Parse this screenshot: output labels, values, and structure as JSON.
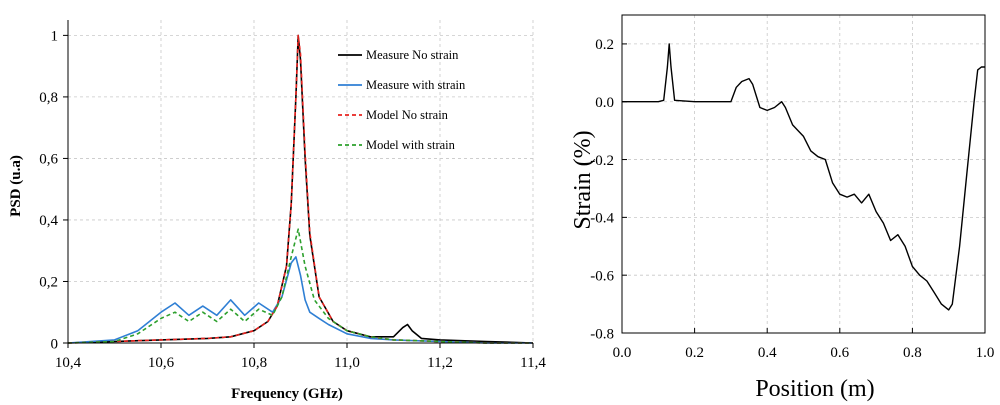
{
  "chart_data": [
    {
      "type": "line",
      "title": "",
      "xlabel": "Frequency (GHz)",
      "ylabel": "PSD (u.a)",
      "xlim": [
        10.4,
        11.4
      ],
      "ylim": [
        0,
        1.05
      ],
      "x_ticks": [
        "10,4",
        "10,6",
        "10,8",
        "11,0",
        "11,2",
        "11,4"
      ],
      "y_ticks": [
        "0",
        "0,2",
        "0,4",
        "0,6",
        "0,8",
        "1"
      ],
      "x_tick_values": [
        10.4,
        10.6,
        10.8,
        11.0,
        11.2,
        11.4
      ],
      "y_tick_values": [
        0,
        0.2,
        0.4,
        0.6,
        0.8,
        1.0
      ],
      "grid": true,
      "legend": "top-right",
      "series": [
        {
          "name": "Measure No strain",
          "color": "#000000",
          "style": "solid",
          "x": [
            10.4,
            10.5,
            10.6,
            10.7,
            10.75,
            10.8,
            10.83,
            10.85,
            10.87,
            10.88,
            10.89,
            10.895,
            10.9,
            10.91,
            10.92,
            10.94,
            10.97,
            11.0,
            11.05,
            11.1,
            11.12,
            11.13,
            11.14,
            11.16,
            11.2,
            11.3,
            11.4
          ],
          "y": [
            0.0,
            0.005,
            0.01,
            0.015,
            0.02,
            0.04,
            0.07,
            0.12,
            0.25,
            0.45,
            0.8,
            1.0,
            0.92,
            0.6,
            0.35,
            0.15,
            0.07,
            0.04,
            0.02,
            0.02,
            0.05,
            0.06,
            0.04,
            0.015,
            0.01,
            0.005,
            0.0
          ]
        },
        {
          "name": "Measure with strain",
          "color": "#2f7fd4",
          "style": "solid",
          "x": [
            10.4,
            10.5,
            10.55,
            10.6,
            10.63,
            10.66,
            10.69,
            10.72,
            10.75,
            10.78,
            10.81,
            10.84,
            10.86,
            10.88,
            10.89,
            10.9,
            10.91,
            10.92,
            10.94,
            10.96,
            11.0,
            11.05,
            11.1,
            11.2,
            11.3,
            11.4
          ],
          "y": [
            0.0,
            0.01,
            0.04,
            0.1,
            0.13,
            0.09,
            0.12,
            0.09,
            0.14,
            0.09,
            0.13,
            0.1,
            0.15,
            0.26,
            0.28,
            0.22,
            0.14,
            0.1,
            0.08,
            0.06,
            0.03,
            0.015,
            0.01,
            0.005,
            0.0,
            0.0
          ]
        },
        {
          "name": "Model No strain",
          "color": "#e8231f",
          "style": "dashed",
          "x": [
            10.4,
            10.5,
            10.6,
            10.7,
            10.75,
            10.8,
            10.83,
            10.85,
            10.87,
            10.88,
            10.89,
            10.895,
            10.9,
            10.91,
            10.92,
            10.94,
            10.97,
            11.0,
            11.05,
            11.1,
            11.2,
            11.3,
            11.4
          ],
          "y": [
            0.0,
            0.005,
            0.01,
            0.015,
            0.02,
            0.04,
            0.07,
            0.12,
            0.25,
            0.45,
            0.8,
            1.0,
            0.94,
            0.62,
            0.36,
            0.15,
            0.07,
            0.04,
            0.02,
            0.01,
            0.005,
            0.0,
            0.0
          ]
        },
        {
          "name": "Model with strain",
          "color": "#2da02d",
          "style": "dashed",
          "x": [
            10.4,
            10.5,
            10.55,
            10.6,
            10.63,
            10.66,
            10.69,
            10.72,
            10.75,
            10.78,
            10.81,
            10.84,
            10.86,
            10.88,
            10.895,
            10.91,
            10.93,
            10.96,
            11.0,
            11.05,
            11.1,
            11.2,
            11.3,
            11.4
          ],
          "y": [
            0.0,
            0.005,
            0.03,
            0.08,
            0.1,
            0.07,
            0.1,
            0.07,
            0.11,
            0.07,
            0.11,
            0.09,
            0.15,
            0.28,
            0.37,
            0.25,
            0.14,
            0.08,
            0.04,
            0.02,
            0.01,
            0.005,
            0.0,
            0.0
          ]
        }
      ]
    },
    {
      "type": "line",
      "title": "",
      "xlabel": "Position (m)",
      "ylabel": "Strain (%)",
      "xlim": [
        0.0,
        1.0
      ],
      "ylim": [
        -0.8,
        0.3
      ],
      "x_ticks": [
        "0.0",
        "0.2",
        "0.4",
        "0.6",
        "0.8",
        "1.0"
      ],
      "y_ticks": [
        "-0.8",
        "-0.6",
        "-0.4",
        "-0.2",
        "0.0",
        "0.2"
      ],
      "x_tick_values": [
        0.0,
        0.2,
        0.4,
        0.6,
        0.8,
        1.0
      ],
      "y_tick_values": [
        -0.8,
        -0.6,
        -0.4,
        -0.2,
        0.0,
        0.2
      ],
      "grid": true,
      "legend": "none",
      "series": [
        {
          "color": "#000000",
          "style": "solid",
          "x": [
            0.0,
            0.1,
            0.115,
            0.125,
            0.13,
            0.135,
            0.145,
            0.2,
            0.3,
            0.315,
            0.33,
            0.35,
            0.36,
            0.38,
            0.4,
            0.42,
            0.44,
            0.45,
            0.47,
            0.5,
            0.52,
            0.54,
            0.56,
            0.58,
            0.6,
            0.62,
            0.64,
            0.66,
            0.68,
            0.7,
            0.72,
            0.74,
            0.76,
            0.78,
            0.8,
            0.82,
            0.84,
            0.86,
            0.88,
            0.9,
            0.91,
            0.93,
            0.95,
            0.97,
            0.98,
            0.99,
            1.0
          ],
          "y": [
            0.0,
            0.0,
            0.005,
            0.12,
            0.2,
            0.12,
            0.005,
            0.0,
            0.0,
            0.05,
            0.07,
            0.08,
            0.06,
            -0.02,
            -0.03,
            -0.02,
            0.0,
            -0.02,
            -0.08,
            -0.12,
            -0.17,
            -0.19,
            -0.2,
            -0.28,
            -0.32,
            -0.33,
            -0.32,
            -0.35,
            -0.32,
            -0.38,
            -0.42,
            -0.48,
            -0.46,
            -0.5,
            -0.57,
            -0.6,
            -0.62,
            -0.66,
            -0.7,
            -0.72,
            -0.7,
            -0.5,
            -0.25,
            0.0,
            0.11,
            0.12,
            0.12
          ]
        }
      ]
    }
  ]
}
